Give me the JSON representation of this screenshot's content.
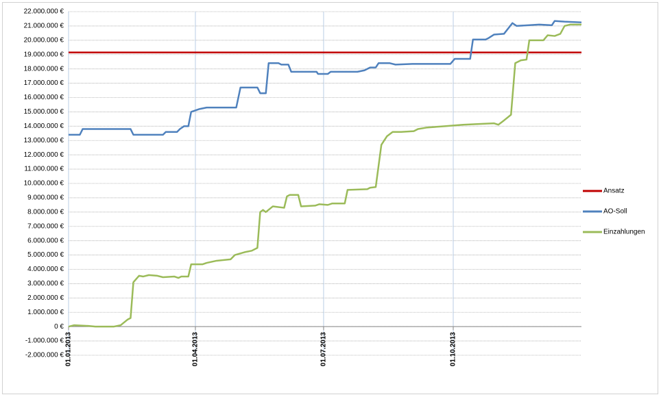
{
  "chart_data": {
    "type": "line",
    "xlim": [
      "2013-01-01",
      "2013-12-31"
    ],
    "xticks": [
      {
        "value": "2013-01-01",
        "label": "01.01.2013"
      },
      {
        "value": "2013-04-01",
        "label": "01.04.2013"
      },
      {
        "value": "2013-07-01",
        "label": "01.07.2013"
      },
      {
        "value": "2013-10-01",
        "label": "01.10.2013"
      }
    ],
    "ylim": [
      -2000000,
      22000000
    ],
    "yticks": [
      {
        "value": -2000000,
        "label": "-2.000.000 €"
      },
      {
        "value": -1000000,
        "label": "-1.000.000 €"
      },
      {
        "value": 0,
        "label": "0 €"
      },
      {
        "value": 1000000,
        "label": "1.000.000 €"
      },
      {
        "value": 2000000,
        "label": "2.000.000 €"
      },
      {
        "value": 3000000,
        "label": "3.000.000 €"
      },
      {
        "value": 4000000,
        "label": "4.000.000 €"
      },
      {
        "value": 5000000,
        "label": "5.000.000 €"
      },
      {
        "value": 6000000,
        "label": "6.000.000 €"
      },
      {
        "value": 7000000,
        "label": "7.000.000 €"
      },
      {
        "value": 8000000,
        "label": "8.000.000 €"
      },
      {
        "value": 9000000,
        "label": "9.000.000 €"
      },
      {
        "value": 10000000,
        "label": "10.000.000 €"
      },
      {
        "value": 11000000,
        "label": "11.000.000 €"
      },
      {
        "value": 12000000,
        "label": "12.000.000 €"
      },
      {
        "value": 13000000,
        "label": "13.000.000 €"
      },
      {
        "value": 14000000,
        "label": "14.000.000 €"
      },
      {
        "value": 15000000,
        "label": "15.000.000 €"
      },
      {
        "value": 16000000,
        "label": "16.000.000 €"
      },
      {
        "value": 17000000,
        "label": "17.000.000 €"
      },
      {
        "value": 18000000,
        "label": "18.000.000 €"
      },
      {
        "value": 19000000,
        "label": "19.000.000 €"
      },
      {
        "value": 20000000,
        "label": "20.000.000 €"
      },
      {
        "value": 21000000,
        "label": "21.000.000 €"
      },
      {
        "value": 22000000,
        "label": "22.000.000 €"
      }
    ],
    "grid": true,
    "legend": "right",
    "series": [
      {
        "name": "Ansatz",
        "color": "#c00000",
        "x": [
          "2013-01-01",
          "2013-12-31"
        ],
        "values": [
          19150000,
          19150000
        ]
      },
      {
        "name": "AO-Soll",
        "color": "#4f81bd",
        "x": [
          "2013-01-01",
          "2013-01-09",
          "2013-01-11",
          "2013-02-14",
          "2013-02-16",
          "2013-03-09",
          "2013-03-11",
          "2013-03-19",
          "2013-03-21",
          "2013-03-24",
          "2013-03-27",
          "2013-03-29",
          "2013-04-04",
          "2013-04-09",
          "2013-04-30",
          "2013-05-03",
          "2013-05-15",
          "2013-05-17",
          "2013-05-21",
          "2013-05-23",
          "2013-05-30",
          "2013-06-01",
          "2013-06-06",
          "2013-06-08",
          "2013-06-26",
          "2013-06-27",
          "2013-07-04",
          "2013-07-06",
          "2013-07-25",
          "2013-07-30",
          "2013-08-03",
          "2013-08-07",
          "2013-08-09",
          "2013-08-17",
          "2013-08-21",
          "2013-09-02",
          "2013-09-29",
          "2013-10-02",
          "2013-10-13",
          "2013-10-15",
          "2013-10-24",
          "2013-10-26",
          "2013-10-30",
          "2013-11-06",
          "2013-11-12",
          "2013-11-15",
          "2013-12-01",
          "2013-12-10",
          "2013-12-12",
          "2013-12-19",
          "2013-12-31"
        ],
        "values": [
          13400000,
          13400000,
          13800000,
          13800000,
          13400000,
          13400000,
          13600000,
          13600000,
          13800000,
          14000000,
          14000000,
          15000000,
          15200000,
          15300000,
          15300000,
          16700000,
          16700000,
          16300000,
          16300000,
          18400000,
          18400000,
          18300000,
          18300000,
          17800000,
          17800000,
          17650000,
          17650000,
          17800000,
          17800000,
          17900000,
          18100000,
          18100000,
          18400000,
          18400000,
          18300000,
          18350000,
          18350000,
          18700000,
          18700000,
          20050000,
          20050000,
          20150000,
          20400000,
          20450000,
          21200000,
          21000000,
          21100000,
          21050000,
          21350000,
          21300000,
          21250000
        ]
      },
      {
        "name": "Einzahlungen",
        "color": "#9bbb59",
        "x": [
          "2013-01-01",
          "2013-01-05",
          "2013-01-15",
          "2013-01-20",
          "2013-02-02",
          "2013-02-07",
          "2013-02-12",
          "2013-02-14",
          "2013-02-16",
          "2013-02-20",
          "2013-02-23",
          "2013-02-27",
          "2013-03-05",
          "2013-03-09",
          "2013-03-17",
          "2013-03-20",
          "2013-03-22",
          "2013-03-27",
          "2013-03-29",
          "2013-04-06",
          "2013-04-09",
          "2013-04-16",
          "2013-04-26",
          "2013-04-29",
          "2013-05-06",
          "2013-05-11",
          "2013-05-15",
          "2013-05-17",
          "2013-05-19",
          "2013-05-21",
          "2013-05-26",
          "2013-06-03",
          "2013-06-05",
          "2013-06-07",
          "2013-06-13",
          "2013-06-15",
          "2013-06-25",
          "2013-06-28",
          "2013-07-04",
          "2013-07-07",
          "2013-07-16",
          "2013-07-18",
          "2013-08-01",
          "2013-08-03",
          "2013-08-07",
          "2013-08-11",
          "2013-08-15",
          "2013-08-19",
          "2013-08-25",
          "2013-09-03",
          "2013-09-06",
          "2013-09-12",
          "2013-09-25",
          "2013-10-08",
          "2013-10-18",
          "2013-10-30",
          "2013-11-02",
          "2013-11-06",
          "2013-11-11",
          "2013-11-14",
          "2013-11-18",
          "2013-11-22",
          "2013-11-24",
          "2013-12-04",
          "2013-12-07",
          "2013-12-12",
          "2013-12-16",
          "2013-12-19",
          "2013-12-23",
          "2013-12-31"
        ],
        "values": [
          0,
          100000,
          50000,
          0,
          0,
          100000,
          500000,
          600000,
          3100000,
          3550000,
          3500000,
          3600000,
          3550000,
          3450000,
          3500000,
          3400000,
          3500000,
          3500000,
          4350000,
          4350000,
          4450000,
          4600000,
          4700000,
          5000000,
          5200000,
          5300000,
          5500000,
          8000000,
          8150000,
          8000000,
          8400000,
          8300000,
          9100000,
          9200000,
          9200000,
          8400000,
          8450000,
          8550000,
          8500000,
          8600000,
          8600000,
          9550000,
          9600000,
          9700000,
          9750000,
          12700000,
          13300000,
          13600000,
          13600000,
          13650000,
          13800000,
          13900000,
          14000000,
          14100000,
          14150000,
          14200000,
          14100000,
          14400000,
          14800000,
          18400000,
          18600000,
          18650000,
          20000000,
          20000000,
          20350000,
          20300000,
          20450000,
          21000000,
          21100000,
          21100000
        ]
      }
    ]
  }
}
